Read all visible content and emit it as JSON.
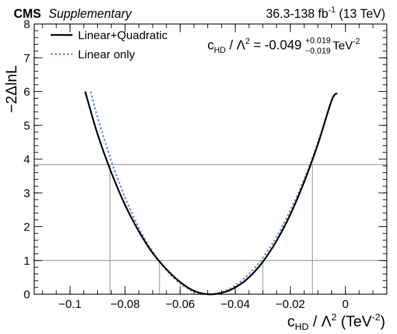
{
  "header": {
    "experiment": "CMS",
    "label": "Supplementary",
    "lumi_prefix": "36.3-138 fb",
    "lumi_exp": "-1",
    "lumi_suffix": "(13 TeV)"
  },
  "result": {
    "param": "c",
    "param_sub": "HD",
    "mid": " / Λ",
    "mid_sup": "2",
    "value": " = -0.049",
    "up": "+0.019",
    "down": "−0.019",
    "unit": "TeV",
    "unit_exp": "-2"
  },
  "chart_data": {
    "type": "line",
    "xlabel": {
      "param": "c",
      "param_sub": "HD",
      "mid": " / Λ",
      "mid_sup": "2",
      "unit_open": " (TeV",
      "unit_exp": "-2",
      "unit_close": ")"
    },
    "ylabel": "−2ΔlnL",
    "xlim": [
      -0.113,
      0.015
    ],
    "ylim": [
      0,
      8
    ],
    "xticks": [
      {
        "value": -0.1,
        "label": "−0.1"
      },
      {
        "value": -0.08,
        "label": "−0.08"
      },
      {
        "value": -0.06,
        "label": "−0.06"
      },
      {
        "value": -0.04,
        "label": "−0.04"
      },
      {
        "value": -0.02,
        "label": "−0.02"
      },
      {
        "value": 0,
        "label": "0"
      }
    ],
    "yticks": [
      {
        "value": 0,
        "label": "0"
      },
      {
        "value": 1,
        "label": "1"
      },
      {
        "value": 2,
        "label": "2"
      },
      {
        "value": 3,
        "label": "3"
      },
      {
        "value": 4,
        "label": "4"
      },
      {
        "value": 5,
        "label": "5"
      },
      {
        "value": 6,
        "label": "6"
      },
      {
        "value": 7,
        "label": "7"
      },
      {
        "value": 8,
        "label": "8"
      }
    ],
    "legend_position": "top-left",
    "series": [
      {
        "name": "Linear+Quadratic",
        "color": "#000000",
        "style": "solid",
        "x": [
          -0.0945,
          -0.09,
          -0.085,
          -0.08,
          -0.075,
          -0.07,
          -0.065,
          -0.06,
          -0.055,
          -0.05,
          -0.045,
          -0.04,
          -0.035,
          -0.03,
          -0.025,
          -0.02,
          -0.015,
          -0.01,
          -0.005,
          -0.003
        ],
        "y": [
          6.0,
          4.74,
          3.6,
          2.64,
          1.86,
          1.22,
          0.74,
          0.36,
          0.1,
          0.0,
          0.04,
          0.2,
          0.5,
          0.96,
          1.58,
          2.36,
          3.32,
          4.44,
          5.74,
          5.95
        ]
      },
      {
        "name": "Linear only",
        "color": "#6f91d6",
        "style": "dotted",
        "x": [
          -0.0925,
          -0.09,
          -0.085,
          -0.08,
          -0.075,
          -0.07,
          -0.065,
          -0.06,
          -0.055,
          -0.05,
          -0.045,
          -0.04,
          -0.035,
          -0.03,
          -0.025,
          -0.02,
          -0.015,
          -0.01,
          -0.005,
          -0.003
        ],
        "y": [
          6.0,
          5.24,
          3.94,
          2.86,
          1.96,
          1.26,
          0.72,
          0.32,
          0.08,
          0.0,
          0.06,
          0.26,
          0.6,
          1.08,
          1.7,
          2.48,
          3.4,
          4.48,
          5.72,
          5.95
        ]
      }
    ],
    "reference_lines": {
      "horizontal": [
        {
          "y": 1.0,
          "color": "#9a9a9a"
        },
        {
          "y": 3.84,
          "color": "#9a9a9a"
        }
      ],
      "vertical": [
        {
          "x": -0.0855,
          "y_top": 3.84
        },
        {
          "x": -0.0675,
          "y_top": 1.0
        },
        {
          "x": -0.03,
          "y_top": 1.0
        },
        {
          "x": -0.012,
          "y_top": 3.84
        }
      ]
    }
  }
}
